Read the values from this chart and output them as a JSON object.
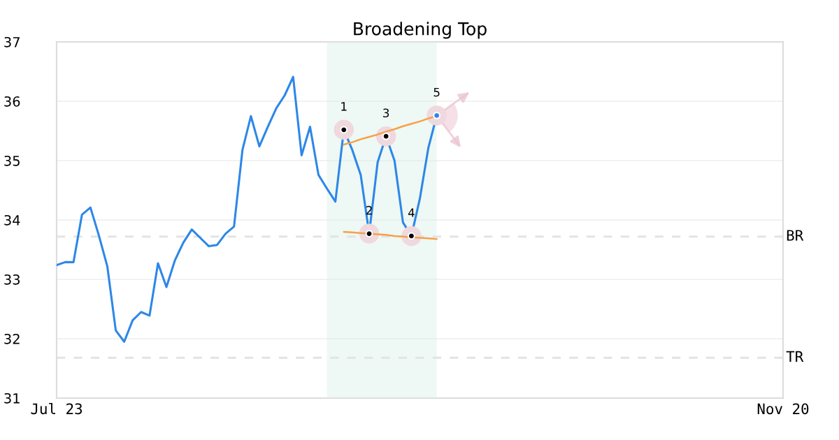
{
  "chart_data": {
    "type": "line",
    "title": "Broadening Top",
    "categories": [
      "Jul 23",
      null,
      null,
      null,
      null,
      null,
      null,
      null,
      null,
      null,
      null,
      null,
      null,
      null,
      null,
      null,
      null,
      null,
      null,
      null,
      null,
      null,
      null,
      null,
      null,
      null,
      null,
      null,
      null,
      null,
      null,
      null,
      null,
      null,
      null,
      null,
      null,
      null,
      null,
      null,
      null,
      null,
      null,
      null,
      null,
      null,
      null,
      null,
      null,
      null,
      null,
      null,
      null,
      null,
      null,
      null,
      null,
      null,
      null,
      null,
      null,
      null,
      null,
      null,
      null,
      null,
      null,
      null,
      null,
      null,
      null,
      null,
      null,
      null,
      null,
      null,
      null,
      null,
      null,
      null,
      null,
      null,
      null,
      null,
      null,
      null,
      "Nov 20"
    ],
    "ylim": [
      31,
      37
    ],
    "yticks": [
      31,
      32,
      33,
      34,
      35,
      36,
      37
    ],
    "grid": "y",
    "series": [
      {
        "color": "#2d87e8",
        "values": [
          33.24,
          33.29,
          33.29,
          34.09,
          34.21,
          33.74,
          33.22,
          32.14,
          31.95,
          32.31,
          32.45,
          32.39,
          33.27,
          32.87,
          33.32,
          33.62,
          33.84,
          33.7,
          33.56,
          33.58,
          33.77,
          33.89,
          35.18,
          35.75,
          35.24,
          35.57,
          35.88,
          36.1,
          36.41,
          35.09,
          35.57,
          34.76,
          34.53,
          34.31,
          35.52,
          35.18,
          34.76,
          33.77,
          34.97,
          35.41,
          35.0,
          33.96,
          33.73,
          34.36,
          35.21,
          35.76,
          null,
          null,
          null,
          null,
          null,
          null,
          null,
          null,
          null,
          null,
          null,
          null,
          null,
          null,
          null,
          null,
          null,
          null,
          null,
          null,
          null,
          null,
          null,
          null,
          null,
          null,
          null,
          null,
          null,
          null,
          null,
          null,
          null,
          null,
          null,
          null,
          null,
          null,
          null,
          null,
          null
        ]
      },
      {
        "type": "line",
        "color": "#f7a04a",
        "values": [
          null,
          null,
          null,
          null,
          null,
          null,
          null,
          null,
          null,
          null,
          null,
          null,
          null,
          null,
          null,
          null,
          null,
          null,
          null,
          null,
          null,
          null,
          null,
          null,
          null,
          null,
          null,
          null,
          null,
          null,
          null,
          null,
          null,
          null,
          35.27,
          35.31,
          35.36,
          35.4,
          35.44,
          35.49,
          35.53,
          35.58,
          35.62,
          35.66,
          35.71,
          35.75,
          null,
          null,
          null,
          null,
          null,
          null,
          null,
          null,
          null,
          null,
          null,
          null,
          null,
          null,
          null,
          null,
          null,
          null,
          null,
          null,
          null,
          null,
          null,
          null,
          null,
          null,
          null,
          null,
          null,
          null,
          null,
          null,
          null,
          null,
          null,
          null,
          null,
          null,
          null,
          null,
          null
        ]
      },
      {
        "type": "line",
        "color": "#f7a04a",
        "values": [
          null,
          null,
          null,
          null,
          null,
          null,
          null,
          null,
          null,
          null,
          null,
          null,
          null,
          null,
          null,
          null,
          null,
          null,
          null,
          null,
          null,
          null,
          null,
          null,
          null,
          null,
          null,
          null,
          null,
          null,
          null,
          null,
          null,
          null,
          33.8,
          33.79,
          33.78,
          33.77,
          33.76,
          33.75,
          33.73,
          33.72,
          33.71,
          33.7,
          33.69,
          33.68,
          null,
          null,
          null,
          null,
          null,
          null,
          null,
          null,
          null,
          null,
          null,
          null,
          null,
          null,
          null,
          null,
          null,
          null,
          null,
          null,
          null,
          null,
          null,
          null,
          null,
          null,
          null,
          null,
          null,
          null,
          null,
          null,
          null,
          null,
          null,
          null,
          null,
          null,
          null,
          null,
          null
        ]
      },
      {
        "type": "scatter",
        "marker": "circle",
        "values": [
          null,
          null,
          null,
          null,
          null,
          null,
          null,
          null,
          null,
          null,
          null,
          null,
          null,
          null,
          null,
          null,
          null,
          null,
          null,
          null,
          null,
          null,
          null,
          null,
          null,
          null,
          null,
          null,
          null,
          null,
          null,
          null,
          null,
          null,
          35.52,
          null,
          null,
          33.77,
          null,
          35.41,
          null,
          null,
          33.73,
          null,
          null,
          35.76,
          null,
          null,
          null,
          null,
          null,
          null,
          null,
          null,
          null,
          null,
          null,
          null,
          null,
          null,
          null,
          null,
          null,
          null,
          null,
          null,
          null,
          null,
          null,
          null,
          null,
          null,
          null,
          null,
          null,
          null,
          null,
          null,
          null,
          null,
          null,
          null,
          null,
          null,
          null,
          null,
          null
        ],
        "colors": [
          null,
          null,
          null,
          null,
          null,
          null,
          null,
          null,
          null,
          null,
          null,
          null,
          null,
          null,
          null,
          null,
          null,
          null,
          null,
          null,
          null,
          null,
          null,
          null,
          null,
          null,
          null,
          null,
          null,
          null,
          null,
          null,
          null,
          null,
          "#000000",
          null,
          null,
          "#000000",
          null,
          "#000000",
          null,
          null,
          "#000000",
          null,
          null,
          "#2d87e8",
          null,
          null,
          null,
          null,
          null,
          null,
          null,
          null,
          null,
          null,
          null,
          null,
          null,
          null,
          null,
          null,
          null,
          null,
          null,
          null,
          null,
          null,
          null,
          null,
          null,
          null,
          null,
          null,
          null,
          null,
          null,
          null,
          null,
          null,
          null,
          null,
          null,
          null,
          null,
          null,
          null
        ]
      }
    ],
    "ref_lines": [
      {
        "axis": "y",
        "value": 33.72,
        "label": "BR",
        "color": "#e3e3e3",
        "line_style": "dashed"
      },
      {
        "axis": "y",
        "value": 31.68,
        "label": "TR",
        "color": "#e3e3e3",
        "line_style": "dashed"
      }
    ],
    "annotations": [
      {
        "text": "1",
        "y": 35.52
      },
      {
        "text": "2",
        "y": 33.77
      },
      {
        "text": "3",
        "y": 35.41
      },
      {
        "text": "4",
        "y": 33.73
      },
      {
        "text": "5",
        "y": 35.76
      }
    ]
  }
}
